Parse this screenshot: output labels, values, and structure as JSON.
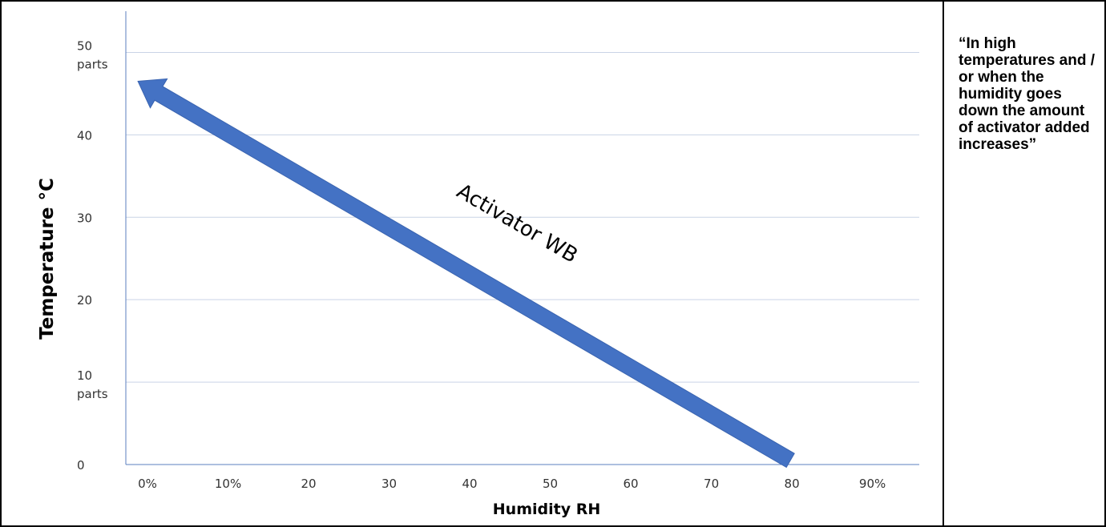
{
  "chart_data": {
    "type": "line",
    "xlabel": "Humidity RH",
    "ylabel": "Temperature °C",
    "x_tick_labels": [
      "0%",
      "10%",
      "20",
      "30",
      "40",
      "50",
      "60",
      "70",
      "80",
      "90%"
    ],
    "y_ticks": [
      {
        "value": 0,
        "label": "0",
        "sublabel": ""
      },
      {
        "value": 10,
        "label": "10",
        "sublabel": "parts"
      },
      {
        "value": 20,
        "label": "20",
        "sublabel": ""
      },
      {
        "value": 30,
        "label": "30",
        "sublabel": ""
      },
      {
        "value": 40,
        "label": "40",
        "sublabel": ""
      },
      {
        "value": 50,
        "label": "50",
        "sublabel": "parts"
      }
    ],
    "xlim": [
      -0.5,
      98
    ],
    "ylim": [
      0,
      55
    ],
    "grid": true,
    "series": [
      {
        "name": "Activator WB",
        "color": "#4472C4",
        "x": [
          82,
          1
        ],
        "y": [
          0.5,
          46.5
        ],
        "style": "arrow"
      }
    ]
  },
  "note": "“In high temperatures and / or when the humidity goes down the amount of activator added increases”"
}
